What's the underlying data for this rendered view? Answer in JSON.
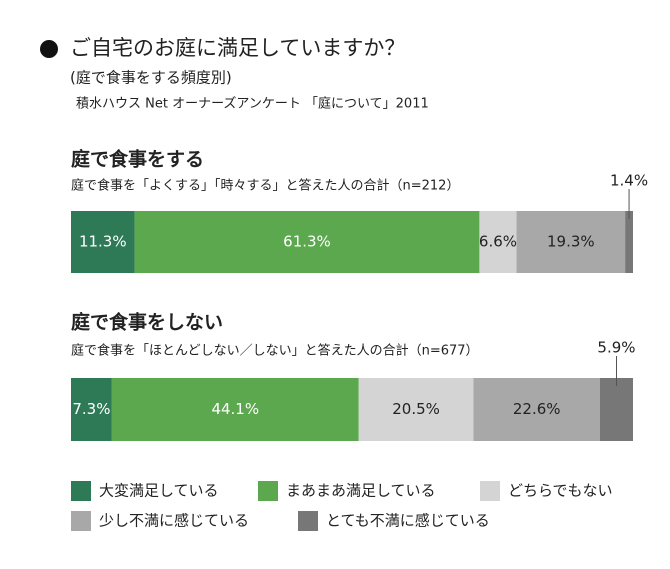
{
  "chart_data": {
    "type": "stacked-bar",
    "title": "ご自宅のお庭に満足していますか？",
    "subtitle": "(庭で食事をする頻度別)",
    "source": "積水ハウス Net オーナーズアンケート 「庭について」2011",
    "categories": [
      "庭で食事をする",
      "庭で食事をしない"
    ],
    "category_subtitles": [
      "庭で食事を「よくする」「時々する」と答えた人の合計（n=212）",
      "庭で食事を「ほとんどしない／しない」と答えた人の合計（n=677）"
    ],
    "series": [
      {
        "name": "大変満足している",
        "color": "#2e7a57",
        "values": [
          11.3,
          7.3
        ],
        "value_labels": [
          "11.3%",
          "7.3%"
        ]
      },
      {
        "name": "まあまあ満足している",
        "color": "#5ca84f",
        "values": [
          61.3,
          44.1
        ],
        "value_labels": [
          "61.3%",
          "44.1%"
        ]
      },
      {
        "name": "どちらでもない",
        "color": "#d4d4d4",
        "values": [
          6.6,
          20.5
        ],
        "value_labels": [
          "6.6%",
          "20.5%"
        ]
      },
      {
        "name": "少し不満に感じている",
        "color": "#a8a8a8",
        "values": [
          19.3,
          22.6
        ],
        "value_labels": [
          "19.3%",
          "22.6%"
        ]
      },
      {
        "name": "とても不満に感じている",
        "color": "#777777",
        "values": [
          1.4,
          5.9
        ],
        "value_labels": [
          "1.4%",
          "5.9%"
        ]
      }
    ]
  }
}
